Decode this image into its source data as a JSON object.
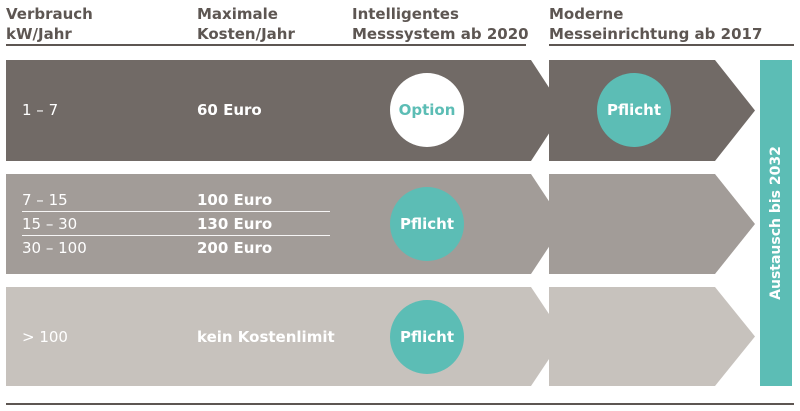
{
  "headers": {
    "col1": [
      "Verbrauch",
      "kW/Jahr"
    ],
    "col2": [
      "Maximale",
      "Kosten/Jahr"
    ],
    "col3": [
      "Intelligentes",
      "Messsystem ab 2020"
    ],
    "col4": [
      "Moderne",
      "Messeinrichtung ab 2017"
    ]
  },
  "rows": [
    {
      "ranges": [
        "1 – 7"
      ],
      "costs": [
        "60 Euro"
      ],
      "ims": "Option",
      "mme": "Pflicht"
    },
    {
      "ranges": [
        "7 – 15",
        "15 – 30",
        "30 – 100"
      ],
      "costs": [
        "100 Euro",
        "130 Euro",
        "200 Euro"
      ],
      "ims": "Pflicht",
      "mme": ""
    },
    {
      "ranges": [
        "> 100"
      ],
      "costs": [
        "kein Kostenlimit"
      ],
      "ims": "Pflicht",
      "mme": ""
    }
  ],
  "side_label": "Austausch bis 2032",
  "colors": {
    "text_dark": "#5d5652",
    "row1": "#716a66",
    "row2": "#a29c98",
    "row3": "#c7c2bd",
    "teal": "#5cbdb5",
    "white": "#ffffff"
  },
  "icons": {
    "band_arrow": "chevron-right-shape",
    "column_arrow": "chevron-right-shape"
  }
}
